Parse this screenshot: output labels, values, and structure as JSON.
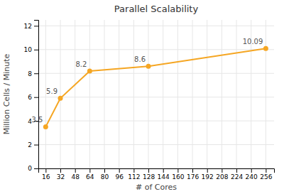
{
  "chart_data": {
    "type": "line",
    "title": "Parallel Scalability",
    "xlabel": "# of Cores",
    "ylabel": "Million Cells / Minute",
    "x": [
      16,
      32,
      64,
      128,
      256
    ],
    "values": [
      3.5,
      5.9,
      8.2,
      8.6,
      10.09
    ],
    "color": "#F5A623",
    "marker": "circle",
    "xlim": [
      8,
      265
    ],
    "xticks": [
      16,
      32,
      48,
      64,
      80,
      96,
      112,
      128,
      144,
      160,
      176,
      192,
      208,
      224,
      240,
      256
    ],
    "ylim": [
      0,
      12.5
    ],
    "yticks": [
      0,
      2,
      4,
      6,
      8,
      10,
      12
    ],
    "grid": true,
    "data_labels": true
  }
}
